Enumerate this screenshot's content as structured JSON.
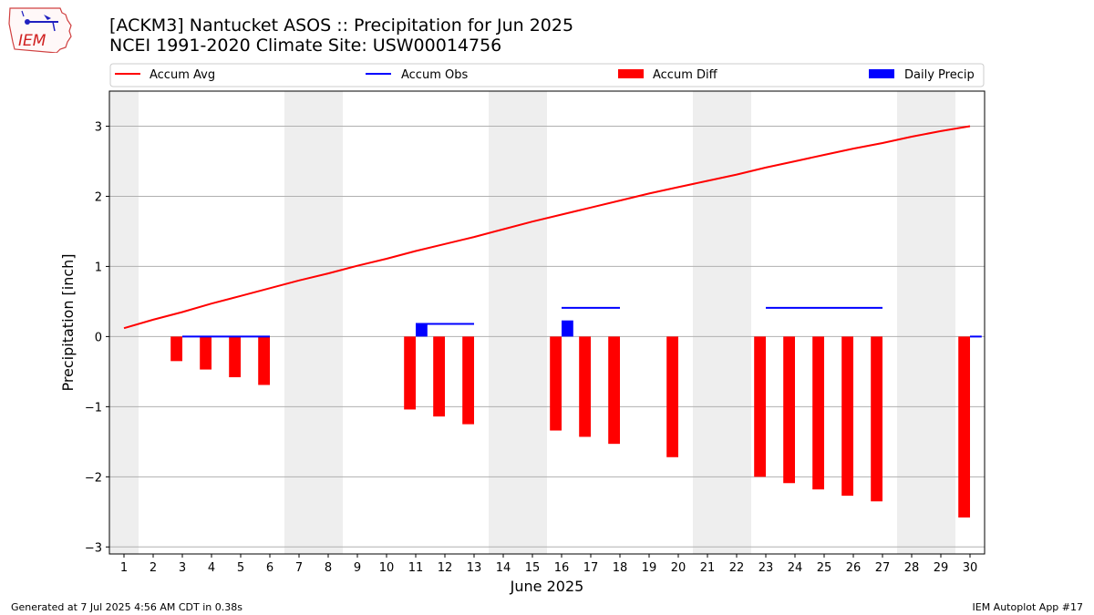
{
  "header": {
    "logo_text": "IEM",
    "title_line1": "[ACKM3] Nantucket ASOS :: Precipitation for Jun 2025",
    "title_line2": "NCEI 1991-2020 Climate Site: USW00014756"
  },
  "footer": {
    "left": "Generated at 7 Jul 2025 4:56 AM CDT in 0.38s",
    "right": "IEM Autoplot App #17"
  },
  "colors": {
    "accum_avg": "#ff0000",
    "accum_obs": "#0000ff",
    "accum_diff": "#ff0000",
    "daily_precip": "#0000ff",
    "weekend_shade": "#eeeeee",
    "grid": "#b0b0b0"
  },
  "chart_data": {
    "type": "bar",
    "xlabel": "June 2025",
    "ylabel": "Precipitation [inch]",
    "xlim": [
      0.5,
      30.5
    ],
    "ylim": [
      -3.1,
      3.5
    ],
    "yticks": [
      -3,
      -2,
      -1,
      0,
      1,
      2,
      3
    ],
    "xticks": [
      1,
      2,
      3,
      4,
      5,
      6,
      7,
      8,
      9,
      10,
      11,
      12,
      13,
      14,
      15,
      16,
      17,
      18,
      19,
      20,
      21,
      22,
      23,
      24,
      25,
      26,
      27,
      28,
      29,
      30
    ],
    "grid": true,
    "legend_location": "top",
    "legend": [
      "Accum Avg",
      "Accum Obs",
      "Accum Diff",
      "Daily Precip"
    ],
    "shaded_days": [
      [
        0.5,
        1.5
      ],
      [
        6.5,
        8.5
      ],
      [
        13.5,
        15.5
      ],
      [
        20.5,
        22.5
      ],
      [
        27.5,
        29.5
      ]
    ],
    "accum_avg": [
      {
        "x": 1,
        "y": 0.12
      },
      {
        "x": 2,
        "y": 0.24
      },
      {
        "x": 3,
        "y": 0.35
      },
      {
        "x": 4,
        "y": 0.47
      },
      {
        "x": 5,
        "y": 0.58
      },
      {
        "x": 6,
        "y": 0.69
      },
      {
        "x": 7,
        "y": 0.8
      },
      {
        "x": 8,
        "y": 0.9
      },
      {
        "x": 9,
        "y": 1.01
      },
      {
        "x": 10,
        "y": 1.11
      },
      {
        "x": 11,
        "y": 1.22
      },
      {
        "x": 12,
        "y": 1.32
      },
      {
        "x": 13,
        "y": 1.42
      },
      {
        "x": 14,
        "y": 1.53
      },
      {
        "x": 15,
        "y": 1.64
      },
      {
        "x": 16,
        "y": 1.74
      },
      {
        "x": 17,
        "y": 1.84
      },
      {
        "x": 18,
        "y": 1.94
      },
      {
        "x": 19,
        "y": 2.04
      },
      {
        "x": 20,
        "y": 2.13
      },
      {
        "x": 21,
        "y": 2.22
      },
      {
        "x": 22,
        "y": 2.31
      },
      {
        "x": 23,
        "y": 2.41
      },
      {
        "x": 24,
        "y": 2.5
      },
      {
        "x": 25,
        "y": 2.59
      },
      {
        "x": 26,
        "y": 2.68
      },
      {
        "x": 27,
        "y": 2.76
      },
      {
        "x": 28,
        "y": 2.85
      },
      {
        "x": 29,
        "y": 2.93
      },
      {
        "x": 30,
        "y": 3.0
      }
    ],
    "accum_obs_segments": [
      {
        "x_start": 3,
        "x_end": 6,
        "y": 0.0
      },
      {
        "x_start": 11,
        "x_end": 13,
        "y": 0.18
      },
      {
        "x_start": 16,
        "x_end": 18,
        "y": 0.41
      },
      {
        "x_start": 23,
        "x_end": 27,
        "y": 0.41
      },
      {
        "x_start": 30,
        "x_end": 30.4,
        "y": 0.0
      }
    ],
    "accum_diff": [
      {
        "x": 3,
        "y": -0.35
      },
      {
        "x": 4,
        "y": -0.47
      },
      {
        "x": 5,
        "y": -0.58
      },
      {
        "x": 6,
        "y": -0.69
      },
      {
        "x": 11,
        "y": -1.04
      },
      {
        "x": 12,
        "y": -1.14
      },
      {
        "x": 13,
        "y": -1.25
      },
      {
        "x": 16,
        "y": -1.34
      },
      {
        "x": 17,
        "y": -1.43
      },
      {
        "x": 18,
        "y": -1.53
      },
      {
        "x": 20,
        "y": -1.72
      },
      {
        "x": 23,
        "y": -2.0
      },
      {
        "x": 24,
        "y": -2.09
      },
      {
        "x": 25,
        "y": -2.18
      },
      {
        "x": 26,
        "y": -2.27
      },
      {
        "x": 27,
        "y": -2.35
      },
      {
        "x": 30,
        "y": -2.58
      }
    ],
    "daily_precip": [
      {
        "x": 11,
        "y": 0.18
      },
      {
        "x": 16,
        "y": 0.23
      }
    ]
  }
}
